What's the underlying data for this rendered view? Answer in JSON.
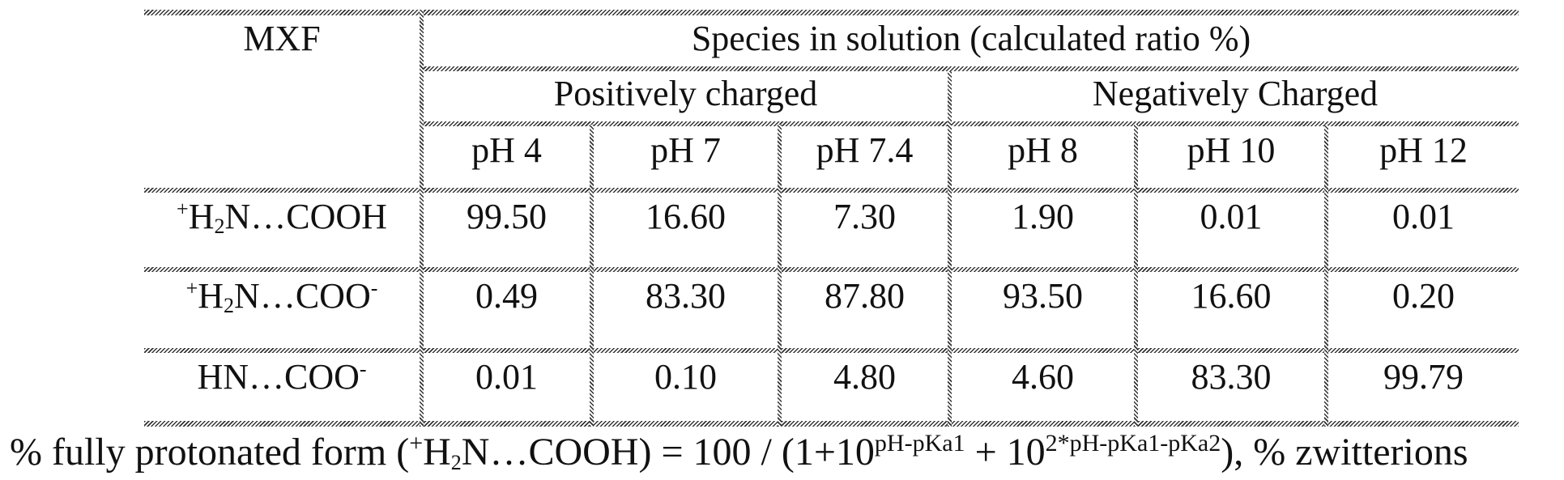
{
  "table": {
    "header": {
      "first_col": "MXF",
      "group_title": "Species in solution (calculated ratio %)",
      "groups": [
        "Positively charged",
        "Negatively Charged"
      ],
      "columns": [
        "pH 4",
        "pH 7",
        "pH 7.4",
        "pH 8",
        "pH 10",
        "pH 12"
      ]
    },
    "rows": [
      {
        "species_prefix": "+",
        "species_a": "H",
        "species_sub": "2",
        "species_b": "N…COOH",
        "species_suffix": "",
        "values": [
          "99.50",
          "16.60",
          "7.30",
          "1.90",
          "0.01",
          "0.01"
        ]
      },
      {
        "species_prefix": "+",
        "species_a": "H",
        "species_sub": "2",
        "species_b": "N…COO",
        "species_suffix": "-",
        "values": [
          "0.49",
          "83.30",
          "87.80",
          "93.50",
          "16.60",
          "0.20"
        ]
      },
      {
        "species_prefix": "",
        "species_a": "",
        "species_sub": "",
        "species_b": "HN…COO",
        "species_suffix": "-",
        "values": [
          "0.01",
          "0.10",
          "4.80",
          "4.60",
          "83.30",
          "99.79"
        ]
      }
    ]
  },
  "footnote": {
    "lead": "% fully protonated form (",
    "plus": "+",
    "h": "H",
    "two": "2",
    "species": "N…COOH) = 100 / (1+10",
    "exp1": "pH-pKa1",
    "mid": " + 10",
    "exp2": "2*pH-pKa1-pKa2",
    "tail": "), % zwitterions"
  }
}
